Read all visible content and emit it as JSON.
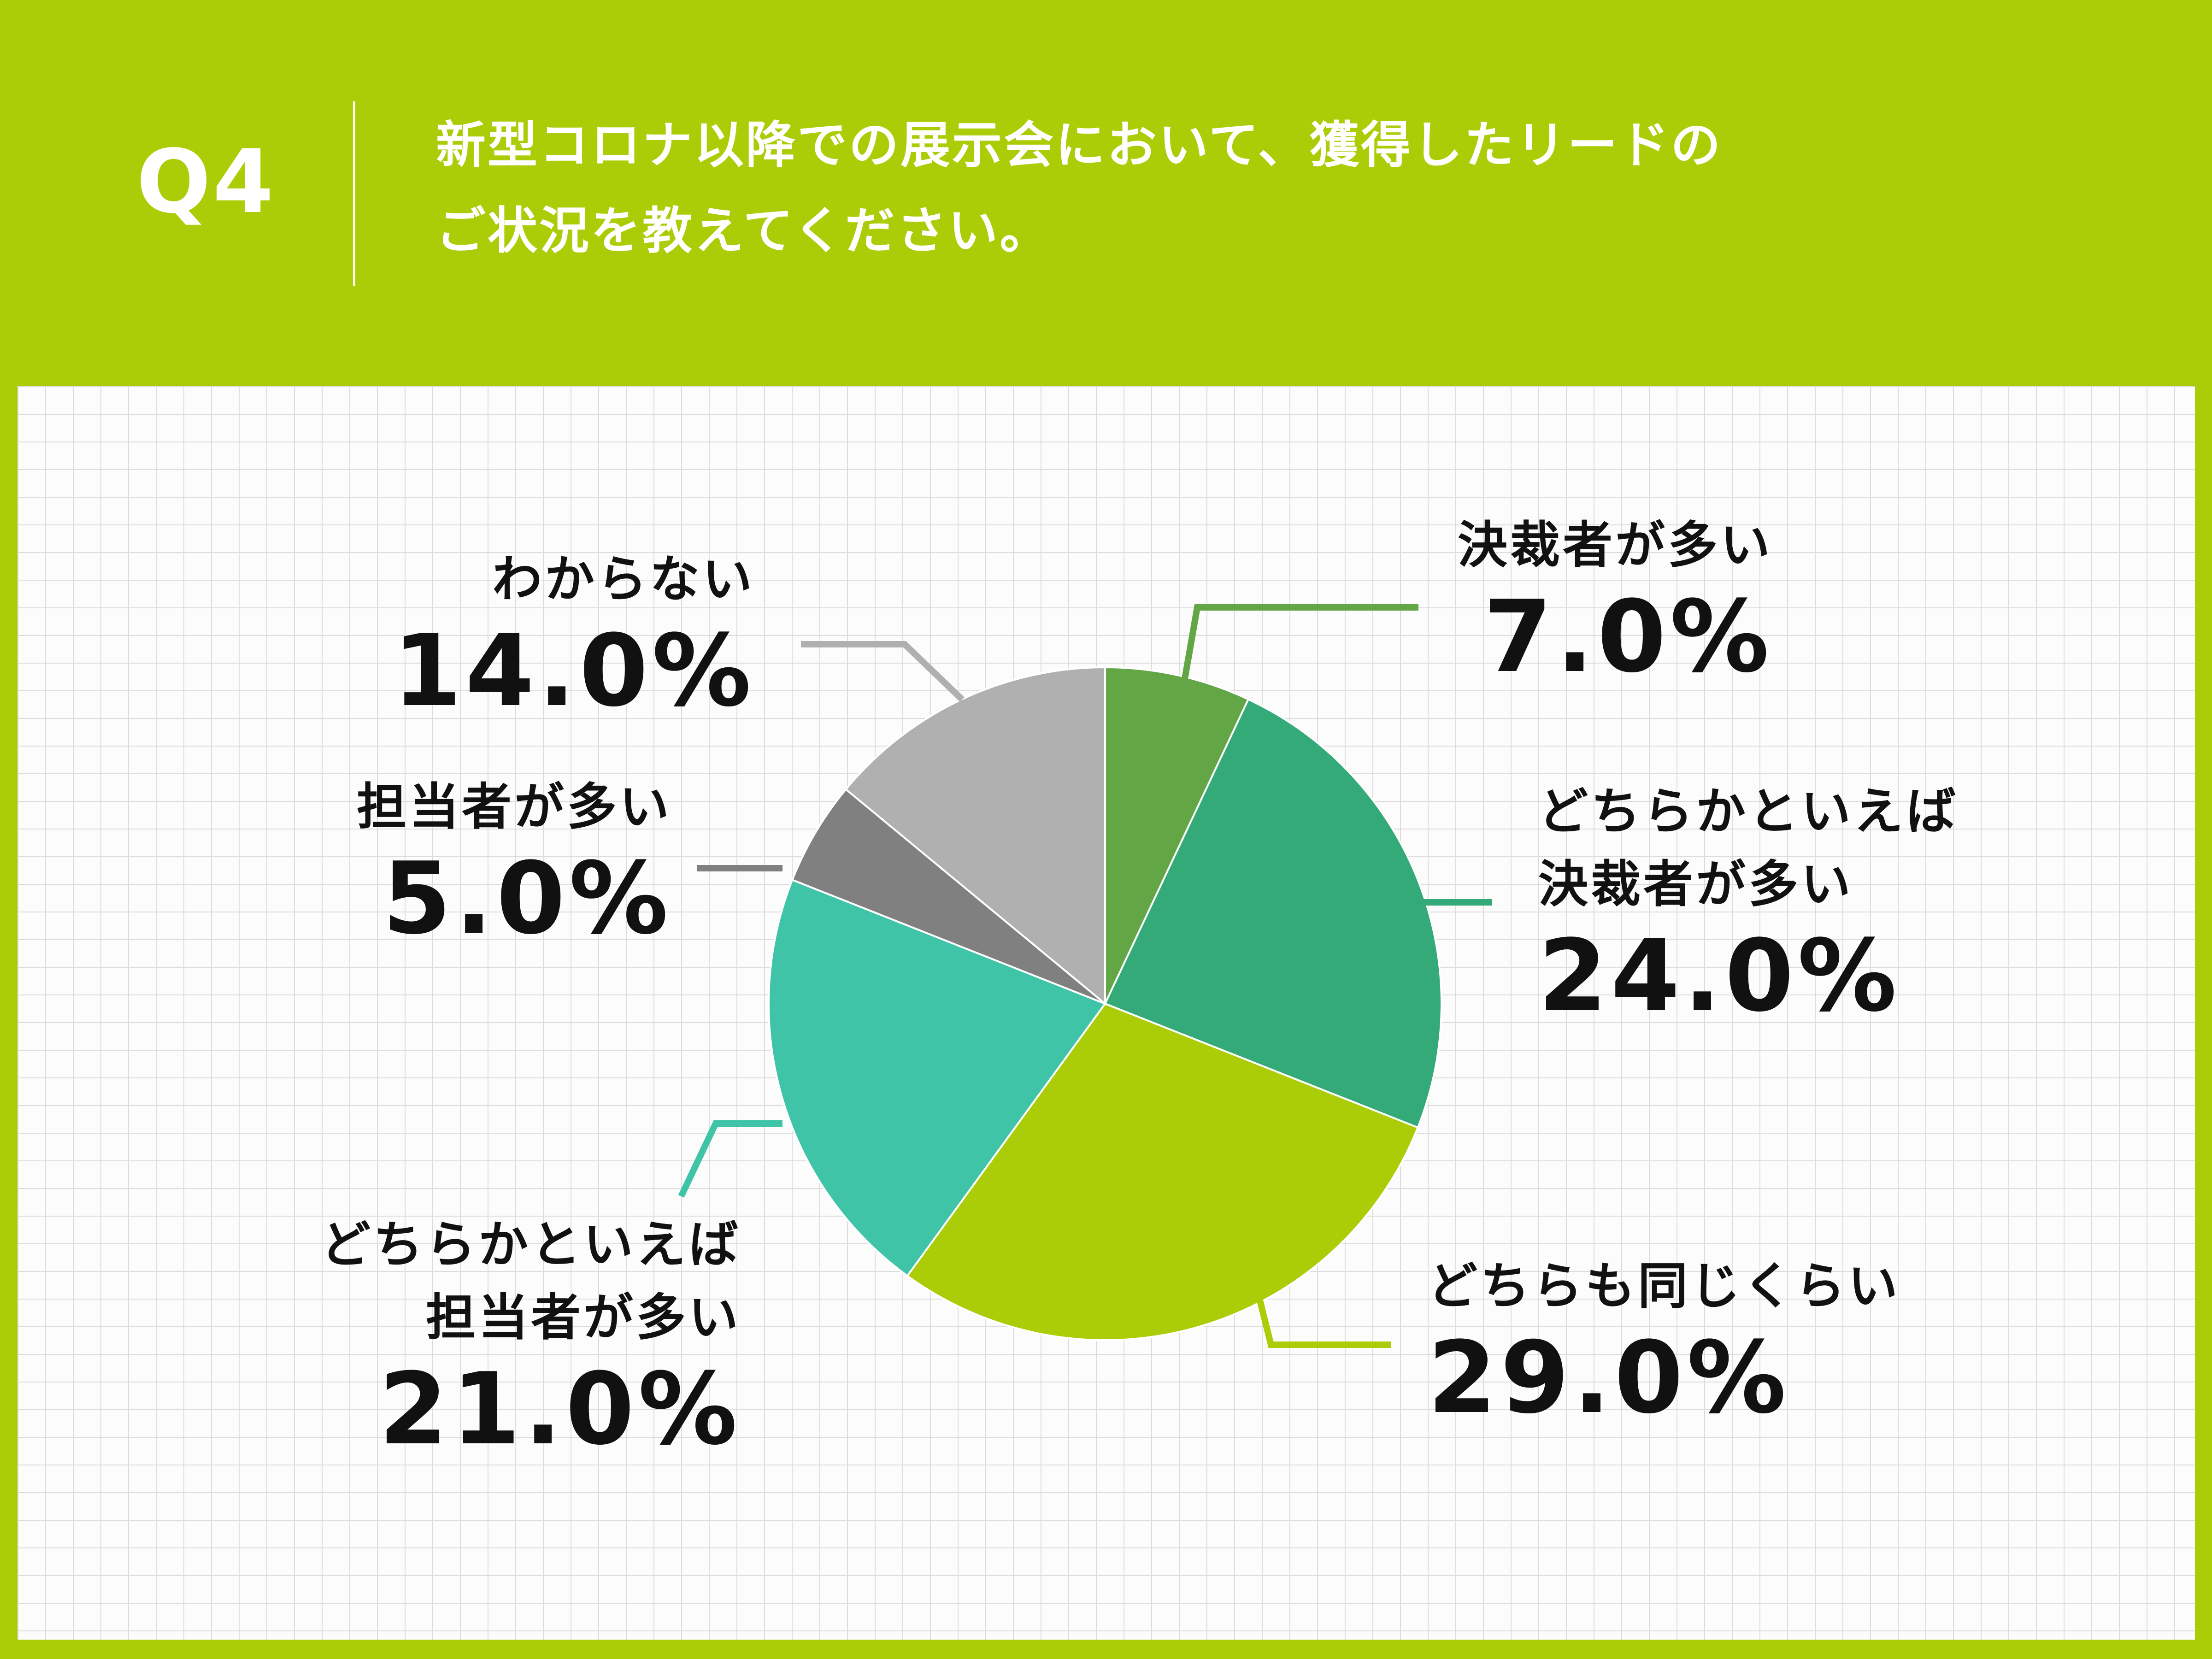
{
  "header": {
    "q_label": "Q4",
    "question_line1": "新型コロナ以降での展示会において、獲得したリードの",
    "question_line2": "ご状況を教えてください。"
  },
  "chart_data": {
    "type": "pie",
    "slices": [
      {
        "name_lines": [
          "決裁者が多い"
        ],
        "value": 7.0,
        "label": "7.0%",
        "color": "#62a645"
      },
      {
        "name_lines": [
          "どちらかといえば",
          "決裁者が多い"
        ],
        "value": 24.0,
        "label": "24.0%",
        "color": "#33aa77"
      },
      {
        "name_lines": [
          "どちらも同じくらい"
        ],
        "value": 29.0,
        "label": "29.0%",
        "color": "#abcd07"
      },
      {
        "name_lines": [
          "どちらかといえば",
          "担当者が多い"
        ],
        "value": 21.0,
        "label": "21.0%",
        "color": "#40c4a8"
      },
      {
        "name_lines": [
          "担当者が多い"
        ],
        "value": 5.0,
        "label": "5.0%",
        "color": "#808080"
      },
      {
        "name_lines": [
          "わからない"
        ],
        "value": 14.0,
        "label": "14.0%",
        "color": "#b0b0b0"
      }
    ],
    "start_angle": "12 o'clock",
    "direction": "clockwise"
  }
}
